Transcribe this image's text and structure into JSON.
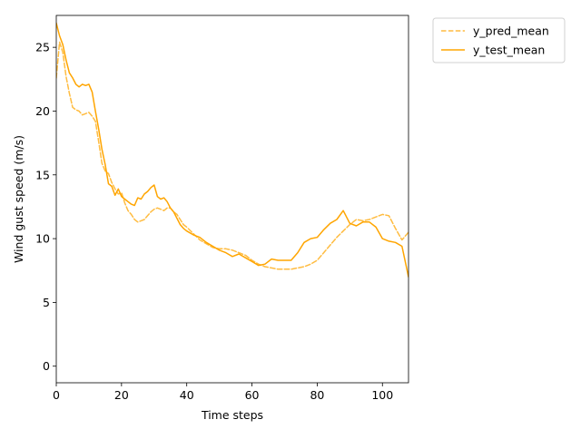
{
  "chart_data": {
    "type": "line",
    "title": "",
    "xlabel": "Time steps",
    "ylabel": "Wind gust speed (m/s)",
    "xlim": [
      0,
      108
    ],
    "ylim": [
      -1.3,
      27.5
    ],
    "xticks": [
      0,
      20,
      40,
      60,
      80,
      100
    ],
    "yticks": [
      0,
      5,
      10,
      15,
      20,
      25
    ],
    "grid": false,
    "legend_position": "outside-top-right",
    "series": [
      {
        "name": "y_pred_mean",
        "color": "#ffa500",
        "linestyle": "dashed",
        "x": [
          0,
          1,
          2,
          3,
          4,
          5,
          6,
          7,
          8,
          9,
          10,
          11,
          12,
          13,
          14,
          15,
          16,
          17,
          18,
          19,
          20,
          21,
          22,
          23,
          24,
          25,
          26,
          27,
          28,
          29,
          30,
          31,
          32,
          33,
          34,
          35,
          36,
          37,
          38,
          39,
          40,
          42,
          44,
          46,
          48,
          50,
          52,
          54,
          56,
          58,
          60,
          62,
          64,
          66,
          68,
          70,
          72,
          74,
          76,
          78,
          80,
          82,
          84,
          86,
          88,
          90,
          92,
          94,
          96,
          98,
          100,
          102,
          104,
          106,
          108
        ],
        "values": [
          22.6,
          25.4,
          24.6,
          22.7,
          21.4,
          20.3,
          20.1,
          20.0,
          19.7,
          19.8,
          19.9,
          19.6,
          19.2,
          17.6,
          15.9,
          15.3,
          15.1,
          14.4,
          13.9,
          13.5,
          13.6,
          12.8,
          12.2,
          11.9,
          11.5,
          11.3,
          11.4,
          11.5,
          11.8,
          12.1,
          12.3,
          12.4,
          12.3,
          12.2,
          12.4,
          12.4,
          12.1,
          11.9,
          11.5,
          11.1,
          10.9,
          10.4,
          9.9,
          9.6,
          9.3,
          9.2,
          9.2,
          9.1,
          8.9,
          8.7,
          8.3,
          8.0,
          7.8,
          7.7,
          7.6,
          7.6,
          7.6,
          7.7,
          7.8,
          8.0,
          8.3,
          8.9,
          9.5,
          10.1,
          10.6,
          11.1,
          11.5,
          11.4,
          11.5,
          11.7,
          11.9,
          11.8,
          10.8,
          9.9,
          10.5
        ]
      },
      {
        "name": "y_test_mean",
        "color": "#ffa500",
        "linestyle": "solid",
        "x": [
          0,
          1,
          2,
          3,
          4,
          5,
          6,
          7,
          8,
          9,
          10,
          11,
          12,
          13,
          14,
          15,
          16,
          17,
          18,
          19,
          20,
          21,
          22,
          23,
          24,
          25,
          26,
          27,
          28,
          29,
          30,
          31,
          32,
          33,
          34,
          35,
          36,
          37,
          38,
          39,
          40,
          42,
          44,
          46,
          48,
          50,
          52,
          54,
          56,
          58,
          60,
          62,
          64,
          66,
          68,
          70,
          72,
          74,
          76,
          78,
          80,
          82,
          84,
          86,
          88,
          90,
          92,
          94,
          96,
          98,
          100,
          102,
          104,
          106,
          108
        ],
        "values": [
          26.9,
          25.9,
          25.2,
          24.0,
          23.0,
          22.6,
          22.1,
          21.9,
          22.1,
          22.0,
          22.1,
          21.5,
          20.0,
          18.6,
          17.0,
          15.8,
          14.3,
          14.1,
          13.4,
          13.9,
          13.3,
          13.1,
          12.9,
          12.7,
          12.6,
          13.2,
          13.1,
          13.5,
          13.7,
          14.0,
          14.2,
          13.3,
          13.1,
          13.2,
          12.9,
          12.4,
          12.1,
          11.6,
          11.1,
          10.8,
          10.6,
          10.3,
          10.1,
          9.7,
          9.4,
          9.1,
          8.9,
          8.6,
          8.8,
          8.5,
          8.2,
          7.9,
          8.0,
          8.4,
          8.3,
          8.3,
          8.3,
          8.9,
          9.7,
          10.0,
          10.1,
          10.7,
          11.2,
          11.5,
          12.2,
          11.2,
          11.0,
          11.3,
          11.3,
          10.9,
          10.0,
          9.8,
          9.7,
          9.4,
          7.0
        ]
      }
    ]
  }
}
